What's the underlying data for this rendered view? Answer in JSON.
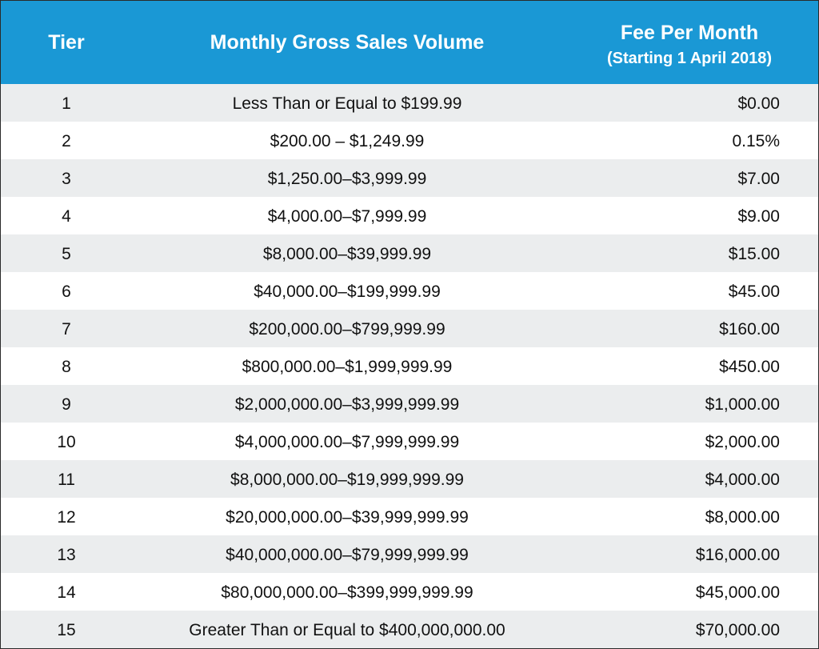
{
  "header": {
    "tier": "Tier",
    "volume": "Monthly Gross Sales Volume",
    "fee": "Fee Per Month",
    "fee_sub": "(Starting 1 April 2018)"
  },
  "colors": {
    "header_bg": "#1a98d5",
    "row_shaded": "#ebedee",
    "row_plain": "#ffffff"
  },
  "rows": [
    {
      "tier": "1",
      "volume": "Less Than or Equal to $199.99",
      "fee": "$0.00"
    },
    {
      "tier": "2",
      "volume": "$200.00 – $1,249.99",
      "fee": "0.15%"
    },
    {
      "tier": "3",
      "volume": "$1,250.00–$3,999.99",
      "fee": "$7.00"
    },
    {
      "tier": "4",
      "volume": "$4,000.00–$7,999.99",
      "fee": "$9.00"
    },
    {
      "tier": "5",
      "volume": "$8,000.00–$39,999.99",
      "fee": "$15.00"
    },
    {
      "tier": "6",
      "volume": "$40,000.00–$199,999.99",
      "fee": "$45.00"
    },
    {
      "tier": "7",
      "volume": "$200,000.00–$799,999.99",
      "fee": "$160.00"
    },
    {
      "tier": "8",
      "volume": "$800,000.00–$1,999,999.99",
      "fee": "$450.00"
    },
    {
      "tier": "9",
      "volume": "$2,000,000.00–$3,999,999.99",
      "fee": "$1,000.00"
    },
    {
      "tier": "10",
      "volume": "$4,000,000.00–$7,999,999.99",
      "fee": "$2,000.00"
    },
    {
      "tier": "11",
      "volume": "$8,000,000.00–$19,999,999.99",
      "fee": "$4,000.00"
    },
    {
      "tier": "12",
      "volume": "$20,000,000.00–$39,999,999.99",
      "fee": "$8,000.00"
    },
    {
      "tier": "13",
      "volume": "$40,000,000.00–$79,999,999.99",
      "fee": "$16,000.00"
    },
    {
      "tier": "14",
      "volume": "$80,000,000.00–$399,999,999.99",
      "fee": "$45,000.00"
    },
    {
      "tier": "15",
      "volume": "Greater Than or Equal to $400,000,000.00",
      "fee": "$70,000.00"
    }
  ]
}
